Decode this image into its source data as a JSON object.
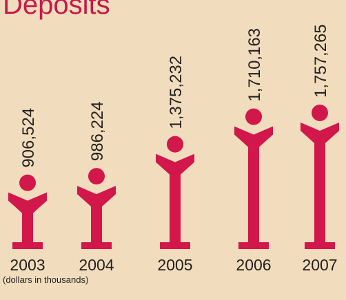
{
  "chart_data": {
    "type": "pictogram",
    "title": "Deposits",
    "categories": [
      "2003",
      "2004",
      "2005",
      "2006",
      "2007"
    ],
    "values": [
      906524,
      986224,
      1375232,
      1710163,
      1757265
    ],
    "value_labels": [
      "906,524",
      "986,224",
      "1,375,232",
      "1,710,163",
      "1,757,265"
    ],
    "color": "#d2174b",
    "note": "(dollars in thousands)"
  }
}
